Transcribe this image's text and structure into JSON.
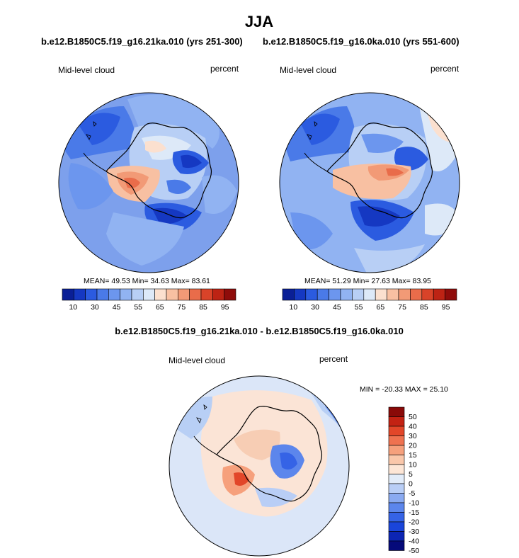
{
  "page": {
    "title": "JJA",
    "left_case_title": "b.e12.B1850C5.f19_g16.21ka.010 (yrs 251-300)",
    "right_case_title": "b.e12.B1850C5.f19_g16.0ka.010 (yrs 551-600)",
    "diff_title": "b.e12.B1850C5.f19_g16.21ka.010 - b.e12.B1850C5.f19_g16.0ka.010"
  },
  "colors": {
    "abs_scale": [
      "#0a1f96",
      "#1538c2",
      "#2b5be0",
      "#4a7ae8",
      "#6c96ee",
      "#91b3f2",
      "#b8cff5",
      "#dde9f8",
      "#fbe0cf",
      "#f8c0a2",
      "#f29a76",
      "#e96c4a",
      "#d94329",
      "#bd2314",
      "#8f0c0a"
    ],
    "diff_scale": [
      "#050a7a",
      "#0c25b4",
      "#1a45da",
      "#3563e6",
      "#5c86ec",
      "#8aaaf1",
      "#b9cef6",
      "#e2ecf9",
      "#fde6d6",
      "#fac7aa",
      "#f6a07c",
      "#ef7250",
      "#e24629",
      "#c32213",
      "#8a0a08"
    ],
    "ocean": "#7da0ec",
    "ice": "#dbe6f8",
    "warm": "#f5b896",
    "cold": "#3b69e3"
  },
  "chart_data": [
    {
      "type": "heatmap",
      "projection": "south-polar-stereographic",
      "title": "b.e12.B1850C5.f19_g16.21ka.010 (yrs 251-300)",
      "left_label": "Mid-level cloud",
      "right_label": "percent",
      "stats": {
        "mean": 49.53,
        "min": 34.63,
        "max": 83.61
      },
      "stats_text": "MEAN=  49.53  Min=  34.63  Max=  83.61",
      "colorbar_levels": [
        10,
        20,
        25,
        30,
        35,
        40,
        45,
        50,
        55,
        60,
        65,
        70,
        75,
        80,
        85,
        90,
        95
      ],
      "colorbar_labels": [
        "10",
        "30",
        "45",
        "55",
        "65",
        "75",
        "85",
        "95"
      ]
    },
    {
      "type": "heatmap",
      "projection": "south-polar-stereographic",
      "title": "b.e12.B1850C5.f19_g16.0ka.010 (yrs 551-600)",
      "left_label": "Mid-level cloud",
      "right_label": "percent",
      "stats": {
        "mean": 51.29,
        "min": 27.63,
        "max": 83.95
      },
      "stats_text": "MEAN=  51.29  Min=  27.63  Max=  83.95",
      "colorbar_levels": [
        10,
        20,
        25,
        30,
        35,
        40,
        45,
        50,
        55,
        60,
        65,
        70,
        75,
        80,
        85,
        90,
        95
      ],
      "colorbar_labels": [
        "10",
        "30",
        "45",
        "55",
        "65",
        "75",
        "85",
        "95"
      ]
    },
    {
      "type": "heatmap",
      "projection": "south-polar-stereographic",
      "title": "b.e12.B1850C5.f19_g16.21ka.010 - b.e12.B1850C5.f19_g16.0ka.010",
      "left_label": "Mid-level cloud",
      "right_label": "percent",
      "stats": {
        "min": -20.33,
        "max": 25.1
      },
      "stats_text": "MIN = -20.33 MAX =  25.10",
      "colorbar_levels": [
        -50,
        -40,
        -30,
        -20,
        -15,
        -10,
        -5,
        0,
        5,
        10,
        15,
        20,
        30,
        40,
        50
      ],
      "colorbar_labels": [
        "50",
        "40",
        "30",
        "20",
        "15",
        "10",
        "5",
        "0",
        "-5",
        "-10",
        "-15",
        "-20",
        "-30",
        "-40",
        "-50"
      ]
    }
  ]
}
